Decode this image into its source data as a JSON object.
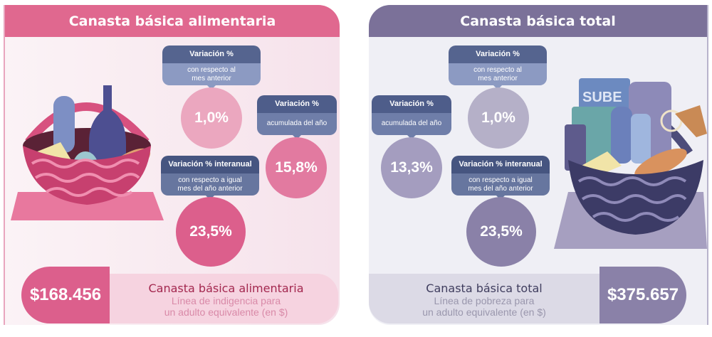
{
  "colors": {
    "pink_header": "#e0688f",
    "purple_header": "#7b7199",
    "bubble_dark": "#55648f",
    "bubble_light": "#8c9ac2"
  },
  "alimentaria": {
    "title": "Canasta básica alimentaria",
    "monthly": {
      "title": "Variación %",
      "subtitle_1": "con respecto al",
      "subtitle_2": "mes anterior",
      "value": "1,0%"
    },
    "accumulated": {
      "title": "Variación %",
      "subtitle": "acumulada del año",
      "value": "15,8%"
    },
    "yearly": {
      "title": "Variación % interanual",
      "subtitle_1": "con respecto a igual",
      "subtitle_2": "mes del año anterior",
      "value": "23,5%"
    },
    "amount": "$168.456",
    "footer_title": "Canasta básica alimentaria",
    "footer_sub_1": "Línea de indigencia para",
    "footer_sub_2": "un adulto equivalente (en $)"
  },
  "total": {
    "title": "Canasta básica total",
    "monthly": {
      "title": "Variación %",
      "subtitle_1": "con respecto al",
      "subtitle_2": "mes anterior",
      "value": "1,0%"
    },
    "accumulated": {
      "title": "Variación %",
      "subtitle": "acumulada del año",
      "value": "13,3%"
    },
    "yearly": {
      "title": "Variación % interanual",
      "subtitle_1": "con respecto a igual",
      "subtitle_2": "mes del año anterior",
      "value": "23,5%"
    },
    "amount": "$375.657",
    "footer_title": "Canasta básica total",
    "footer_sub_1": "Línea de pobreza para",
    "footer_sub_2": "un adulto equivalente (en $)",
    "card_logo": "SUBE"
  }
}
